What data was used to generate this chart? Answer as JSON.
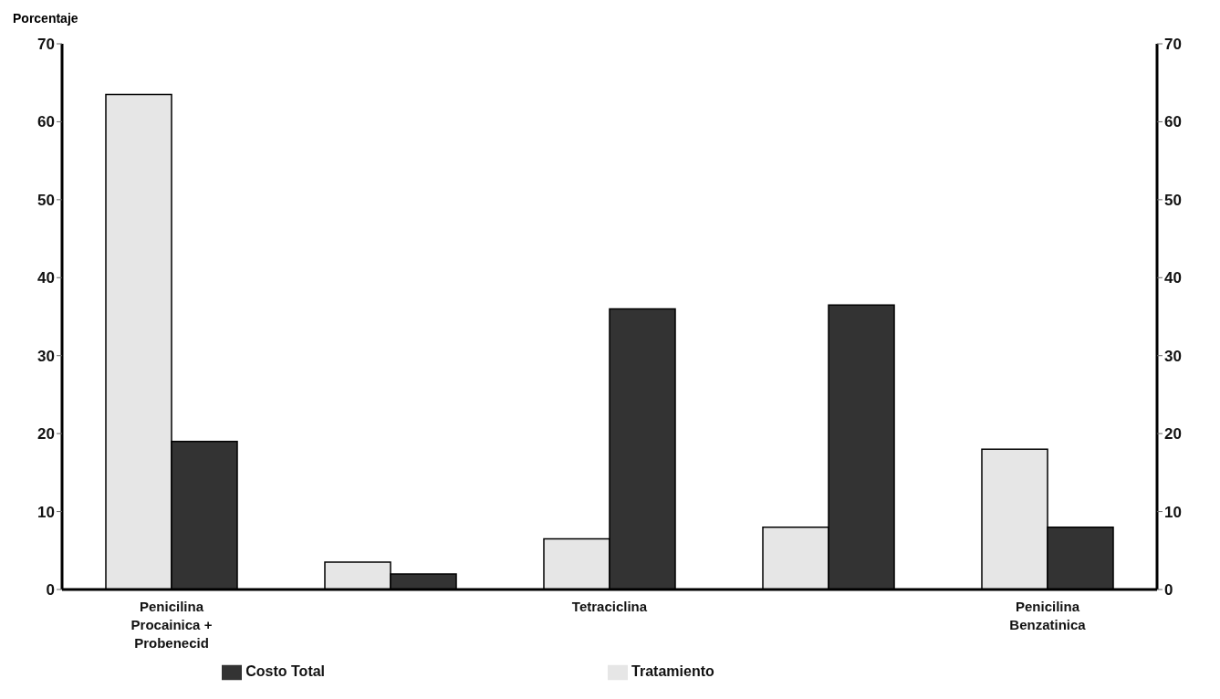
{
  "chart_data": {
    "type": "bar",
    "ylabel": "Porcentaje",
    "categories": [
      "Penicilina Procainica + Probenecid",
      null,
      "Tetraciclina",
      null,
      "Penicilina Benzatinica"
    ],
    "series": [
      {
        "name": "Tratamiento",
        "color": "#e6e6e6",
        "values": [
          63.5,
          3.5,
          6.5,
          8,
          18
        ]
      },
      {
        "name": "Costo Total",
        "color": "#333333",
        "values": [
          19,
          2,
          36,
          36.5,
          8
        ]
      }
    ],
    "ylim": [
      0,
      70
    ],
    "yticks": [
      0,
      10,
      20,
      30,
      40,
      50,
      60,
      70
    ],
    "y2lim": [
      0,
      70
    ],
    "y2ticks": [
      0,
      10,
      20,
      30,
      40,
      50,
      60,
      70
    ],
    "grid": false,
    "legend": "bottom"
  }
}
